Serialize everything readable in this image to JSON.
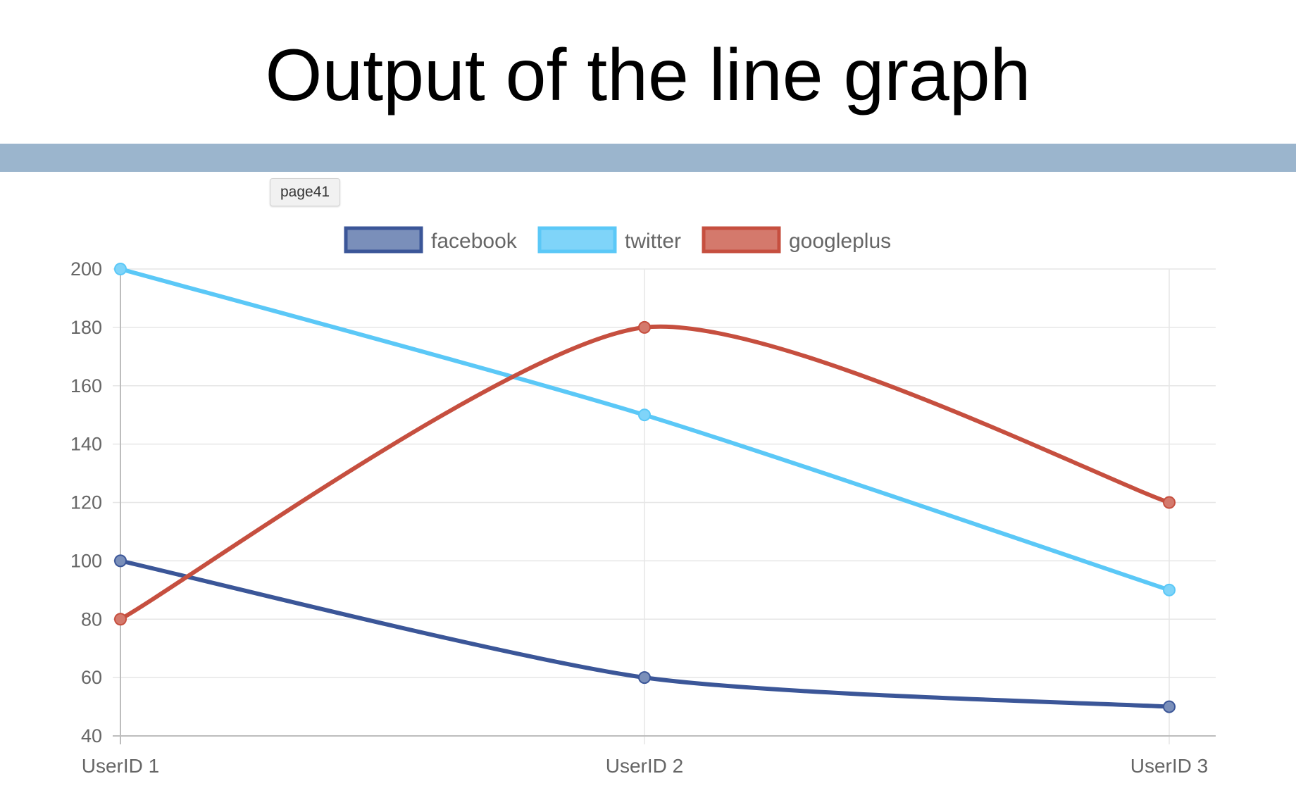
{
  "slide": {
    "title": "Output of the line graph"
  },
  "tooltip": {
    "text": "page41"
  },
  "colors": {
    "title_rule": "#9bb5cd",
    "grid": "#e6e6e6",
    "axis_text": "#666666"
  },
  "chart_data": {
    "type": "line",
    "categories": [
      "UserID 1",
      "UserID 2",
      "UserID 3"
    ],
    "series": [
      {
        "name": "facebook",
        "values": [
          100,
          60,
          50
        ],
        "color": "#3b5698",
        "fill": "#7a8fba"
      },
      {
        "name": "twitter",
        "values": [
          200,
          150,
          90
        ],
        "color": "#5bc8f7",
        "fill": "#7fd4f9"
      },
      {
        "name": "googleplus",
        "values": [
          80,
          180,
          120
        ],
        "color": "#c64f3f",
        "fill": "#d4796c"
      }
    ],
    "yticks": [
      200,
      180,
      160,
      140,
      120,
      100,
      80,
      60,
      40
    ],
    "ylim": [
      40,
      200
    ],
    "grid": true,
    "legend": "top-center",
    "title": "",
    "xlabel": "",
    "ylabel": ""
  }
}
